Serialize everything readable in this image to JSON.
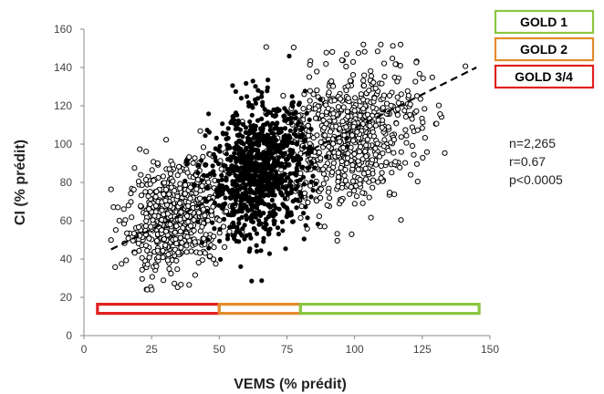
{
  "chart_data": {
    "type": "scatter",
    "xlabel": "VEMS (% prédit)",
    "ylabel": "CI (% prédit)",
    "xlim": [
      0,
      150
    ],
    "ylim": [
      0,
      160
    ],
    "x_ticks": [
      "0",
      "25",
      "50",
      "75",
      "100",
      "125",
      "150"
    ],
    "y_ticks": [
      "0",
      "20",
      "40",
      "60",
      "80",
      "100",
      "120",
      "140",
      "160"
    ],
    "grid": false,
    "legend_position": "top-right",
    "legend": [
      {
        "label": "GOLD 1",
        "color": "#8cc63f"
      },
      {
        "label": "GOLD 2",
        "color": "#e38b2c"
      },
      {
        "label": "GOLD 3/4",
        "color": "#e02020"
      }
    ],
    "stats": [
      "n=2,265",
      "r=0.67",
      "p<0.0005"
    ],
    "n_points": 2265,
    "regression_line": {
      "x": [
        10,
        145
      ],
      "y": [
        45,
        140
      ],
      "style": "dashed"
    },
    "severity_bars": [
      {
        "label": "GOLD 3/4",
        "x_range": [
          5,
          50
        ],
        "y": 14,
        "color": "#e02020"
      },
      {
        "label": "GOLD 2",
        "x_range": [
          50,
          80
        ],
        "y": 14,
        "color": "#e38b2c"
      },
      {
        "label": "GOLD 1",
        "x_range": [
          80,
          146
        ],
        "y": 14,
        "color": "#8cc63f"
      }
    ],
    "series": [
      {
        "filled": false,
        "point_color": "#000000"
      },
      {
        "filled": true,
        "point_color": "#000000"
      },
      {
        "filled": false,
        "point_color": "#000000"
      }
    ],
    "clusters": [
      {
        "x_mean": 34,
        "x_sd": 9,
        "y_mean": 62,
        "y_sd": 14,
        "count": 640,
        "filled": false
      },
      {
        "x_mean": 65,
        "x_sd": 9,
        "y_mean": 86,
        "y_sd": 17,
        "count": 940,
        "filled": true
      },
      {
        "x_mean": 98,
        "x_sd": 13,
        "y_mean": 104,
        "y_sd": 18,
        "count": 685,
        "filled": false
      }
    ]
  }
}
